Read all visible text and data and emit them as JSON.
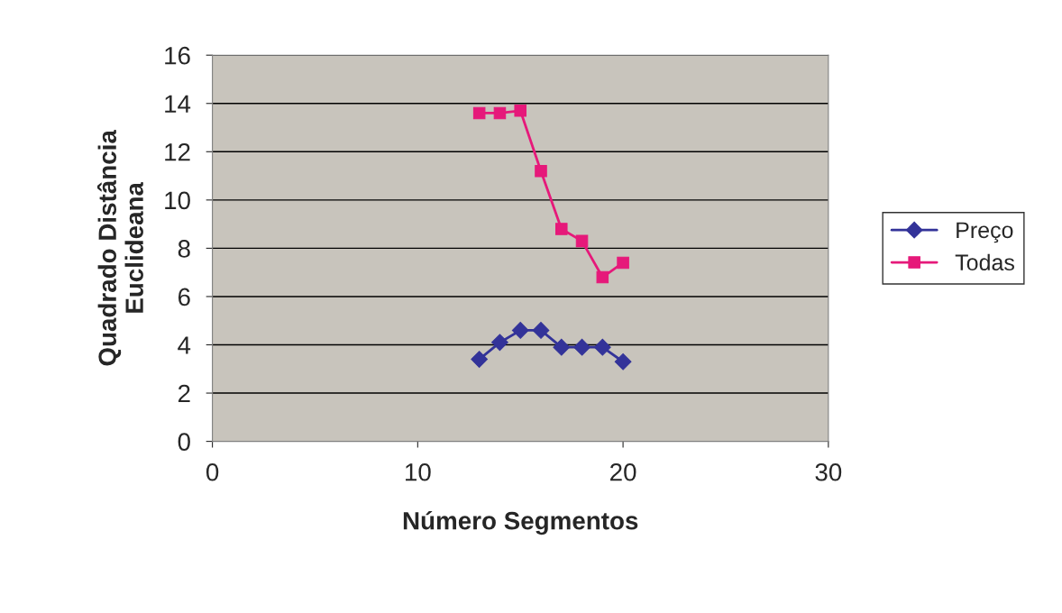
{
  "chart_data": {
    "type": "line",
    "xlabel": "Número Segmentos",
    "ylabel": "Quadrado Distância\nEuclideana",
    "x": [
      13,
      14,
      15,
      16,
      17,
      18,
      19,
      20
    ],
    "series": [
      {
        "name": "Preço",
        "color": "#333399",
        "marker": "diamond",
        "values": [
          3.4,
          4.1,
          4.6,
          4.6,
          3.9,
          3.9,
          3.9,
          3.3
        ]
      },
      {
        "name": "Todas",
        "color": "#e6197a",
        "marker": "square",
        "values": [
          13.6,
          13.6,
          13.7,
          11.2,
          8.8,
          8.3,
          6.8,
          7.4
        ]
      }
    ],
    "xlim": [
      0,
      30
    ],
    "xticks": [
      0,
      10,
      20,
      30
    ],
    "ylim": [
      0,
      16
    ],
    "yticks": [
      0,
      2,
      4,
      6,
      8,
      10,
      12,
      14,
      16
    ],
    "grid": "y",
    "legend": "right"
  }
}
